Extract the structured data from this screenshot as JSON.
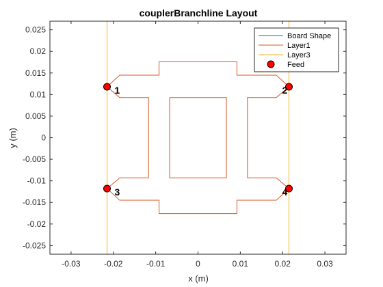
{
  "chart_data": {
    "type": "line",
    "title": "couplerBranchline Layout",
    "xlabel": "x (m)",
    "ylabel": "y (m)",
    "xlim": [
      -0.035,
      0.035
    ],
    "ylim": [
      -0.027,
      0.027
    ],
    "xticks": [
      -0.03,
      -0.02,
      -0.01,
      0,
      0.01,
      0.02,
      0.03
    ],
    "xtick_labels": [
      "-0.03",
      "-0.02",
      "-0.01",
      "0",
      "0.01",
      "0.02",
      "0.03"
    ],
    "yticks": [
      -0.025,
      -0.02,
      -0.015,
      -0.01,
      -0.005,
      0,
      0.005,
      0.01,
      0.015,
      0.02,
      0.025
    ],
    "ytick_labels": [
      "-0.025",
      "-0.02",
      "-0.015",
      "-0.01",
      "-0.005",
      "0",
      "0.005",
      "0.01",
      "0.015",
      "0.02",
      "0.025"
    ],
    "grid": false,
    "legend_position": "top-right",
    "colors": {
      "board": "#0072bd",
      "layer1": "#d95319",
      "layer3": "#edb120",
      "feed_fill": "#ff0000",
      "feed_edge": "#000000",
      "axes": "#262626"
    },
    "series": [
      {
        "name": "Board Shape",
        "color": "#0072bd",
        "kind": "line",
        "x": [],
        "y": []
      },
      {
        "name": "Layer1",
        "color": "#d95319",
        "kind": "line",
        "polygons": [
          {
            "x": [
              -0.0215,
              -0.0185,
              -0.0092,
              -0.0092,
              0.0092,
              0.0092,
              0.0185,
              0.0215,
              0.0185,
              0.0117,
              0.0117,
              0.0185,
              0.0215,
              0.0185,
              0.0092,
              0.0092,
              -0.0092,
              -0.0092,
              -0.0185,
              -0.0215,
              -0.0185,
              -0.0117,
              -0.0117,
              -0.0185,
              -0.0215
            ],
            "y": [
              0.0118,
              0.0145,
              0.0145,
              0.0176,
              0.0176,
              0.0145,
              0.0145,
              0.0118,
              0.0093,
              0.0093,
              -0.0093,
              -0.0093,
              -0.0118,
              -0.0145,
              -0.0145,
              -0.0176,
              -0.0176,
              -0.0145,
              -0.0145,
              -0.0118,
              -0.0093,
              -0.0093,
              0.0093,
              0.0093,
              0.0118
            ]
          },
          {
            "x": [
              -0.0067,
              0.0067,
              0.0067,
              -0.0067,
              -0.0067
            ],
            "y": [
              0.0093,
              0.0093,
              -0.0093,
              -0.0093,
              0.0093
            ]
          }
        ]
      },
      {
        "name": "Layer3",
        "color": "#edb120",
        "kind": "line",
        "x": [
          -0.0215,
          0.0215,
          0.0215,
          -0.0215,
          -0.0215
        ],
        "y": [
          0.027,
          0.027,
          -0.027,
          -0.027,
          0.027
        ]
      },
      {
        "name": "Feed",
        "color": "#ff0000",
        "kind": "marker",
        "points": [
          {
            "x": -0.0215,
            "y": 0.0118,
            "label": "1"
          },
          {
            "x": 0.0215,
            "y": 0.0118,
            "label": "2"
          },
          {
            "x": -0.0215,
            "y": -0.0118,
            "label": "3"
          },
          {
            "x": 0.0215,
            "y": -0.0118,
            "label": "4"
          }
        ]
      }
    ]
  }
}
